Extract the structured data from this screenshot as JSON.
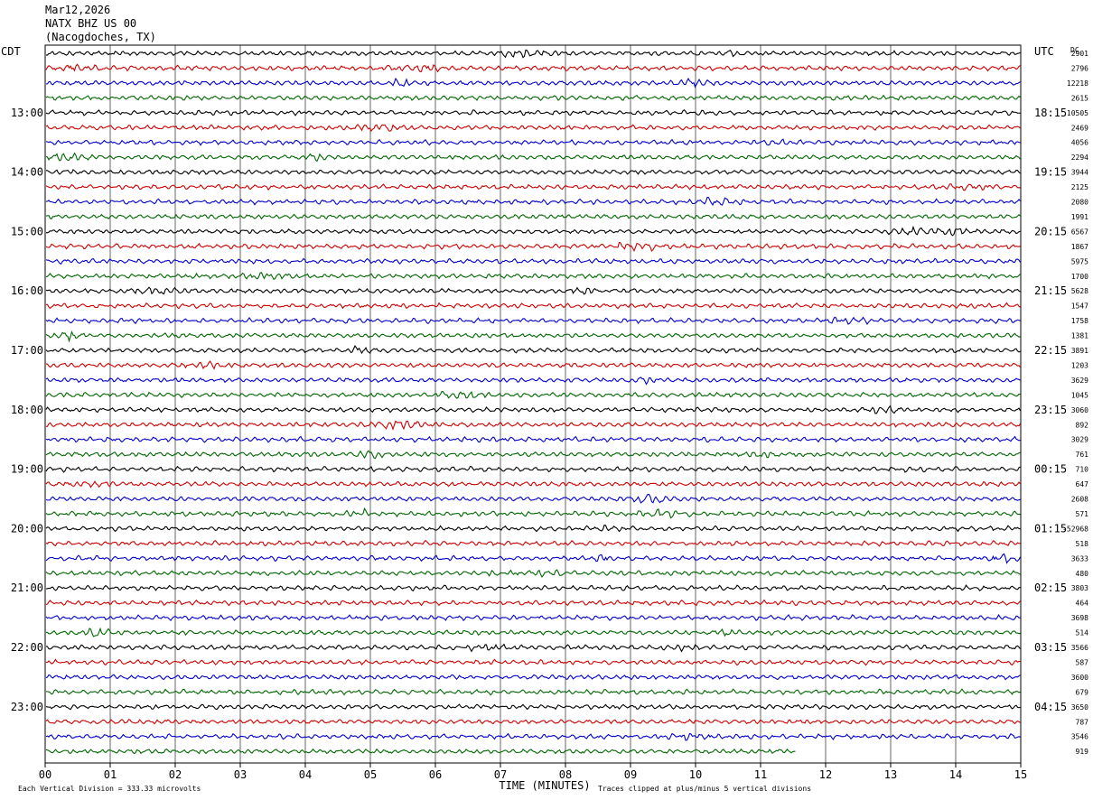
{
  "header": {
    "date": "Mar12,2026",
    "station": "NATX BHZ US 00",
    "location": "(Nacogdoches, TX)"
  },
  "chart_data": {
    "type": "line",
    "left_axis_label": "CDT",
    "right_axis_label": "UTC",
    "dc_label": "DC",
    "xlabel": "TIME (MINUTES)",
    "x_ticks": [
      "00",
      "01",
      "02",
      "03",
      "04",
      "05",
      "06",
      "07",
      "08",
      "09",
      "10",
      "11",
      "12",
      "13",
      "14",
      "15"
    ],
    "xlim": [
      0,
      15
    ],
    "cdt_hour_labels": [
      "13:00",
      "14:00",
      "15:00",
      "16:00",
      "17:00",
      "18:00",
      "19:00",
      "20:00",
      "21:00",
      "22:00",
      "23:00"
    ],
    "utc_hour_labels": [
      "18:15",
      "19:15",
      "20:15",
      "21:15",
      "22:15",
      "23:15",
      "00:15",
      "01:15",
      "02:15",
      "03:15",
      "04:15"
    ],
    "trace_colors": [
      "#000000",
      "#cc0000",
      "#0000cc",
      "#006600"
    ],
    "dc_offsets": [
      "2901",
      "2796",
      "12218",
      "2615",
      "10505",
      "2469",
      "4056",
      "2294",
      "3944",
      "2125",
      "2080",
      "1991",
      "6567",
      "1867",
      "5975",
      "1700",
      "5628",
      "1547",
      "1758",
      "1381",
      "3891",
      "1203",
      "3629",
      "1045",
      "3060",
      "892",
      "3029",
      "761",
      "710",
      "647",
      "2608",
      "571",
      "-52968",
      "518",
      "3633",
      "480",
      "3803",
      "464",
      "3698",
      "514",
      "3566",
      "587",
      "3600",
      "679",
      "3650",
      "787",
      "3546",
      "919"
    ],
    "last_trace_end_minute": 11.55,
    "footer_left": "Each Vertical Division =  333.33 microvolts",
    "footer_right": "Traces clipped at plus/minus 5 vertical divisions"
  }
}
